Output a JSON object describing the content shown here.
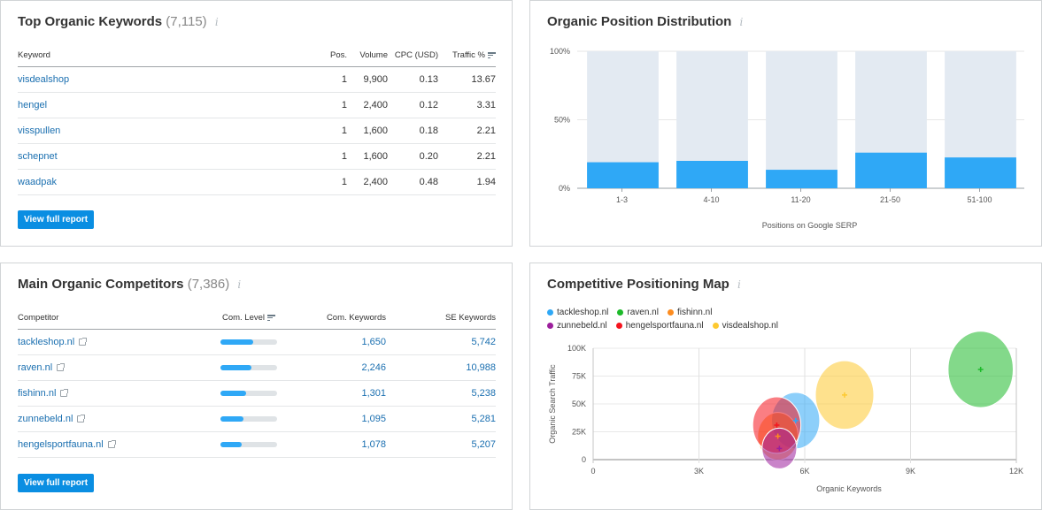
{
  "top_keywords": {
    "title": "Top Organic Keywords",
    "count": "(7,115)",
    "info_icon": "info-icon",
    "columns": [
      "Keyword",
      "Pos.",
      "Volume",
      "CPC (USD)",
      "Traffic %"
    ],
    "sorted_column": "Traffic %",
    "rows": [
      {
        "keyword": "visdealshop",
        "pos": "1",
        "volume": "9,900",
        "cpc": "0.13",
        "traffic": "13.67"
      },
      {
        "keyword": "hengel",
        "pos": "1",
        "volume": "2,400",
        "cpc": "0.12",
        "traffic": "3.31"
      },
      {
        "keyword": "visspullen",
        "pos": "1",
        "volume": "1,600",
        "cpc": "0.18",
        "traffic": "2.21"
      },
      {
        "keyword": "schepnet",
        "pos": "1",
        "volume": "1,600",
        "cpc": "0.20",
        "traffic": "2.21"
      },
      {
        "keyword": "waadpak",
        "pos": "1",
        "volume": "2,400",
        "cpc": "0.48",
        "traffic": "1.94"
      }
    ],
    "button_label": "View full report"
  },
  "competitors": {
    "title": "Main Organic Competitors",
    "count": "(7,386)",
    "columns": [
      "Competitor",
      "Com. Level",
      "Com. Keywords",
      "SE Keywords"
    ],
    "sorted_column": "Com. Level",
    "rows": [
      {
        "domain": "tackleshop.nl",
        "level": 0.58,
        "com_keywords": "1,650",
        "se_keywords": "5,742"
      },
      {
        "domain": "raven.nl",
        "level": 0.55,
        "com_keywords": "2,246",
        "se_keywords": "10,988"
      },
      {
        "domain": "fishinn.nl",
        "level": 0.46,
        "com_keywords": "1,301",
        "se_keywords": "5,238"
      },
      {
        "domain": "zunnebeld.nl",
        "level": 0.41,
        "com_keywords": "1,095",
        "se_keywords": "5,281"
      },
      {
        "domain": "hengelsportfauna.nl",
        "level": 0.38,
        "com_keywords": "1,078",
        "se_keywords": "5,207"
      }
    ],
    "button_label": "View full report"
  },
  "position_distribution": {
    "title": "Organic Position Distribution"
  },
  "positioning_map": {
    "title": "Competitive Positioning Map"
  },
  "colors": {
    "accent": "#0a8ee2",
    "link": "#1a6fb0",
    "bar": "#2fa8f6",
    "bar_bg": "#e3eaf2"
  },
  "chart_data": [
    {
      "type": "bar",
      "title": "Organic Position Distribution",
      "categories": [
        "1-3",
        "4-10",
        "11-20",
        "21-50",
        "51-100"
      ],
      "values": [
        19,
        20,
        13.5,
        26,
        22.5
      ],
      "background_values": [
        100,
        100,
        100,
        100,
        100
      ],
      "xlabel": "Positions on Google SERP",
      "ylabel": "",
      "ylim": [
        0,
        100
      ],
      "yticks": [
        "0%",
        "50%",
        "100%"
      ],
      "grid": true
    },
    {
      "type": "scatter",
      "title": "Competitive Positioning Map",
      "xlabel": "Organic Keywords",
      "ylabel": "Organic Search Traffic",
      "xlim": [
        0,
        12000
      ],
      "ylim": [
        0,
        100000
      ],
      "xticks": [
        "0",
        "3K",
        "6K",
        "9K",
        "12K"
      ],
      "yticks": [
        "0",
        "25K",
        "50K",
        "75K",
        "100K"
      ],
      "legend_position": "top-left",
      "grid": true,
      "series": [
        {
          "name": "tackleshop.nl",
          "color": "#2fa8f6",
          "x": 5742,
          "y": 35000,
          "size": 0.62
        },
        {
          "name": "raven.nl",
          "color": "#1dba2a",
          "x": 10988,
          "y": 81000,
          "size": 1.0
        },
        {
          "name": "fishinn.nl",
          "color": "#fd8c1f",
          "x": 5238,
          "y": 21000,
          "size": 0.45
        },
        {
          "name": "zunnebeld.nl",
          "color": "#9c1f9c",
          "x": 5281,
          "y": 10000,
          "size": 0.32
        },
        {
          "name": "hengelsportfauna.nl",
          "color": "#f5141e",
          "x": 5207,
          "y": 31000,
          "size": 0.62
        },
        {
          "name": "visdealshop.nl",
          "color": "#fdc930",
          "x": 7130,
          "y": 58000,
          "size": 0.85
        }
      ]
    }
  ]
}
